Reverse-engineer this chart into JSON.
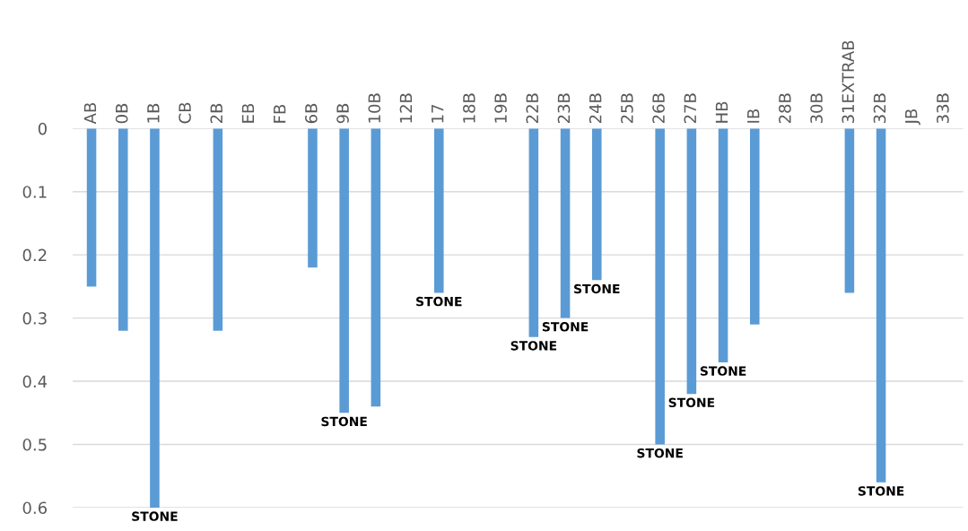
{
  "chart_data": {
    "type": "bar",
    "categories": [
      "AB",
      "0B",
      "1B",
      "CB",
      "2B",
      "EB",
      "FB",
      "6B",
      "9B",
      "10B",
      "12B",
      "17",
      "18B",
      "19B",
      "22B",
      "23B",
      "24B",
      "25B",
      "26B",
      "27B",
      "HB",
      "IB",
      "28B",
      "30B",
      "31EXTRAB",
      "32B",
      "JB",
      "33B"
    ],
    "values": [
      0.25,
      0.32,
      0.6,
      null,
      0.32,
      null,
      null,
      0.22,
      0.45,
      0.44,
      null,
      0.26,
      null,
      null,
      0.33,
      0.3,
      0.24,
      null,
      0.5,
      0.42,
      0.37,
      0.31,
      null,
      null,
      0.26,
      0.56,
      null,
      null
    ],
    "color": "#5b9bd5",
    "ylim": [
      0.6,
      0
    ],
    "yticks": [
      0,
      0.1,
      0.2,
      0.3,
      0.4,
      0.5,
      0.6
    ],
    "grid": "y",
    "annotations": [
      {
        "text": "STONE",
        "x": "1B",
        "y": 0.6
      },
      {
        "text": "STONE",
        "x": "9B",
        "y": 0.45
      },
      {
        "text": "STONE",
        "x": "17",
        "y": 0.26
      },
      {
        "text": "STONE",
        "x": "22B",
        "y": 0.33
      },
      {
        "text": "STONE",
        "x": "23B",
        "y": 0.3
      },
      {
        "text": "STONE",
        "x": "24B",
        "y": 0.24
      },
      {
        "text": "STONE",
        "x": "26B",
        "y": 0.5
      },
      {
        "text": "STONE",
        "x": "27B",
        "y": 0.42
      },
      {
        "text": "STONE",
        "x": "HB",
        "y": 0.37
      },
      {
        "text": "STONE",
        "x": "32B",
        "y": 0.56
      }
    ]
  }
}
